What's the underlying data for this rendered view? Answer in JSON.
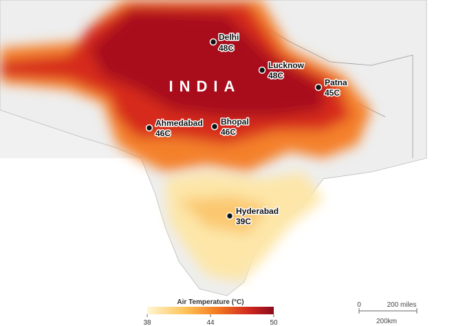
{
  "map": {
    "country_label": "INDIA",
    "cities": [
      {
        "name": "Delhi",
        "temp": "48C"
      },
      {
        "name": "Lucknow",
        "temp": "48C"
      },
      {
        "name": "Patna",
        "temp": "45C"
      },
      {
        "name": "Ahmedabad",
        "temp": "46C"
      },
      {
        "name": "Bhopal",
        "temp": "46C"
      },
      {
        "name": "Hyderabad",
        "temp": "39C"
      }
    ],
    "legend": {
      "title": "Air Temperature (°C)",
      "ticks": [
        38,
        44,
        50
      ]
    },
    "scale_bar": {
      "zero": "0",
      "miles": "200 miles",
      "km": "200km"
    }
  }
}
